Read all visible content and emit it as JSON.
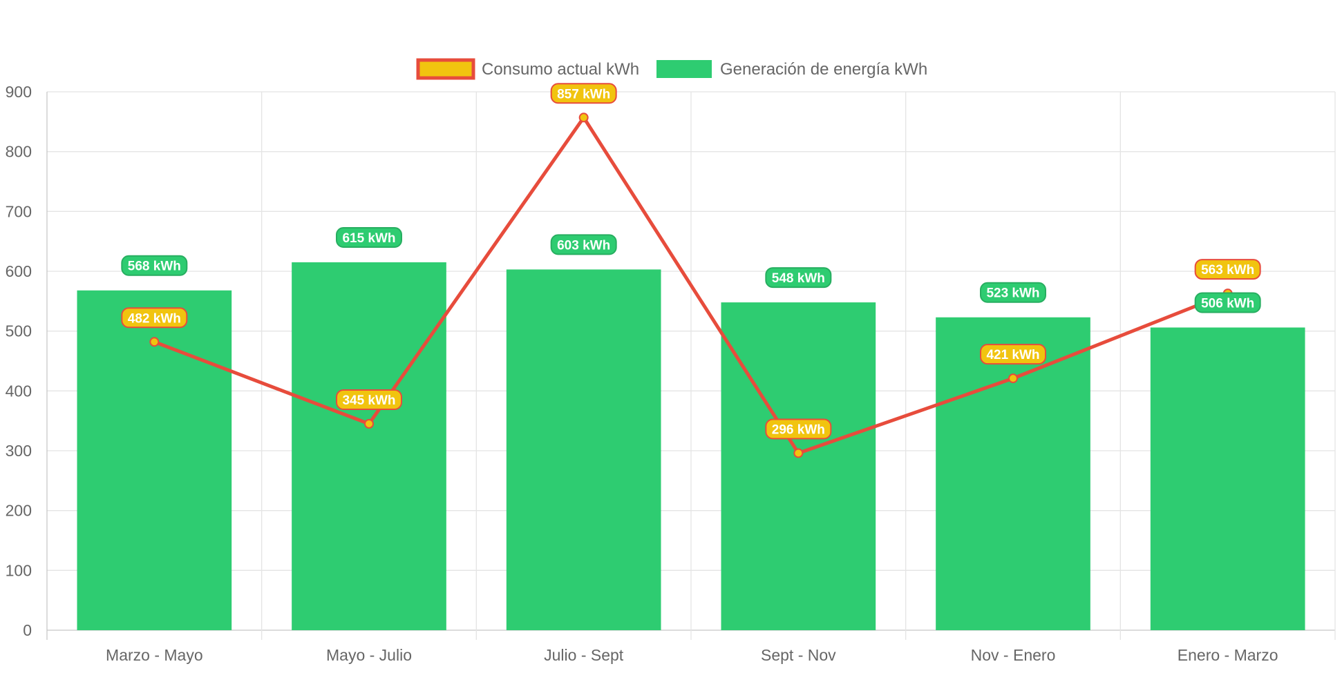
{
  "chart_data": {
    "type": "bar",
    "categories": [
      "Marzo - Mayo",
      "Mayo - Julio",
      "Julio - Sept",
      "Sept - Nov",
      "Nov - Enero",
      "Enero - Marzo"
    ],
    "series": [
      {
        "name": "Consumo actual kWh",
        "type": "line",
        "values": [
          482,
          345,
          857,
          296,
          421,
          563
        ],
        "labels": [
          "482 kWh",
          "345 kWh",
          "857 kWh",
          "296 kWh",
          "421 kWh",
          "563 kWh"
        ],
        "color": "#e74c3c",
        "fill_color": "#f1c40f"
      },
      {
        "name": "Generación de energía kWh",
        "type": "bar",
        "values": [
          568,
          615,
          603,
          548,
          523,
          506
        ],
        "labels": [
          "568 kWh",
          "615 kWh",
          "603 kWh",
          "548 kWh",
          "523 kWh",
          "506 kWh"
        ],
        "color": "#2ecc71",
        "border_color": "#27ae60"
      }
    ],
    "ylim": [
      0,
      900
    ],
    "yticks": [
      "0",
      "100",
      "200",
      "300",
      "400",
      "500",
      "600",
      "700",
      "800",
      "900"
    ],
    "grid": true,
    "legend_position": "top-center"
  }
}
